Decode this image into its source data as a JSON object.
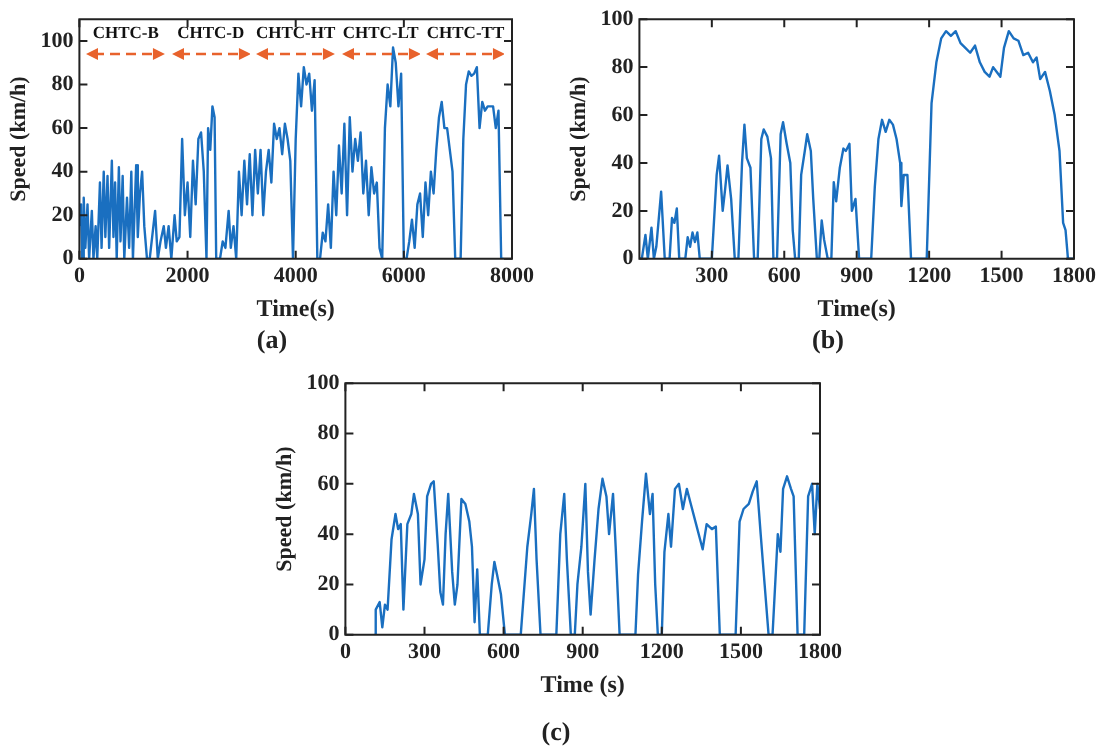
{
  "chart_data": [
    {
      "type": "line",
      "xlabel": "Time(s)",
      "ylabel": "Speed (km/h)",
      "annotations": [
        "(a)",
        "CHTC-B",
        "CHTC-D",
        "CHTC-HT",
        "CHTC-LT",
        "CHTC-TT"
      ],
      "legend": false,
      "grid": false,
      "marker": "none",
      "line_style": "solid",
      "xlim": [
        0,
        8000
      ],
      "ylim": [
        0,
        110
      ],
      "xticks": [
        0,
        2000,
        4000,
        6000,
        8000
      ],
      "yticks": [
        0,
        20,
        40,
        60,
        80,
        100
      ],
      "x": [
        0,
        30,
        50,
        80,
        110,
        150,
        180,
        230,
        260,
        300,
        330,
        380,
        410,
        450,
        480,
        520,
        550,
        600,
        630,
        660,
        690,
        730,
        760,
        800,
        830,
        880,
        920,
        960,
        990,
        1050,
        1080,
        1120,
        1160,
        1200,
        1250,
        1300,
        1400,
        1450,
        1500,
        1560,
        1600,
        1650,
        1700,
        1760,
        1800,
        1850,
        1900,
        1950,
        2000,
        2050,
        2100,
        2150,
        2200,
        2250,
        2300,
        2350,
        2380,
        2420,
        2460,
        2500,
        2530,
        2600,
        2650,
        2700,
        2760,
        2800,
        2850,
        2900,
        2950,
        3000,
        3050,
        3100,
        3150,
        3200,
        3250,
        3300,
        3350,
        3400,
        3450,
        3500,
        3550,
        3600,
        3650,
        3700,
        3750,
        3800,
        3850,
        3900,
        3950,
        4000,
        4050,
        4100,
        4150,
        4200,
        4250,
        4300,
        4350,
        4400,
        4450,
        4500,
        4550,
        4600,
        4650,
        4700,
        4750,
        4800,
        4850,
        4900,
        4950,
        5000,
        5050,
        5100,
        5150,
        5200,
        5250,
        5300,
        5350,
        5400,
        5450,
        5500,
        5550,
        5600,
        5650,
        5700,
        5750,
        5800,
        5850,
        5900,
        5950,
        6000,
        6050,
        6100,
        6150,
        6200,
        6250,
        6300,
        6350,
        6400,
        6450,
        6500,
        6550,
        6600,
        6650,
        6700,
        6750,
        6800,
        6850,
        6900,
        6950,
        7050,
        7100,
        7150,
        7200,
        7250,
        7300,
        7350,
        7400,
        7450,
        7500,
        7550,
        7600,
        7650,
        7700,
        7750,
        7800,
        7850
      ],
      "series": [
        {
          "color": "#1a6fc0",
          "values": [
            15,
            25,
            0,
            28,
            5,
            25,
            0,
            22,
            0,
            15,
            0,
            35,
            5,
            40,
            10,
            38,
            5,
            45,
            10,
            35,
            0,
            42,
            8,
            38,
            0,
            28,
            5,
            40,
            0,
            43,
            10,
            30,
            40,
            15,
            0,
            0,
            22,
            0,
            8,
            15,
            5,
            15,
            0,
            20,
            8,
            10,
            55,
            20,
            35,
            10,
            45,
            25,
            55,
            58,
            40,
            0,
            60,
            50,
            70,
            65,
            0,
            0,
            8,
            5,
            22,
            5,
            15,
            0,
            40,
            20,
            45,
            25,
            48,
            20,
            50,
            30,
            50,
            20,
            40,
            50,
            35,
            62,
            55,
            60,
            48,
            62,
            55,
            45,
            0,
            55,
            85,
            70,
            88,
            80,
            85,
            68,
            82,
            0,
            0,
            12,
            8,
            25,
            5,
            40,
            20,
            52,
            30,
            62,
            20,
            65,
            40,
            55,
            45,
            58,
            30,
            45,
            20,
            42,
            30,
            35,
            5,
            0,
            60,
            80,
            70,
            97,
            90,
            70,
            85,
            0,
            0,
            8,
            18,
            5,
            25,
            30,
            10,
            35,
            20,
            40,
            30,
            50,
            65,
            72,
            60,
            60,
            50,
            40,
            0,
            0,
            55,
            80,
            86,
            84,
            85,
            88,
            60,
            72,
            68,
            70,
            70,
            70,
            60,
            68,
            0,
            0
          ]
        }
      ]
    },
    {
      "type": "line",
      "xlabel": "Time(s)",
      "ylabel": "Speed (km/h)",
      "annotations": [
        "(b)"
      ],
      "legend": false,
      "grid": false,
      "marker": "none",
      "line_style": "solid",
      "xlim": [
        0,
        1800
      ],
      "ylim": [
        0,
        100
      ],
      "xticks": [
        300,
        600,
        900,
        1200,
        1500,
        1800
      ],
      "yticks": [
        0,
        20,
        40,
        60,
        80,
        100
      ],
      "x": [
        0,
        10,
        25,
        35,
        50,
        60,
        70,
        90,
        105,
        125,
        135,
        145,
        155,
        165,
        190,
        200,
        210,
        220,
        230,
        240,
        250,
        300,
        320,
        330,
        345,
        355,
        365,
        380,
        395,
        410,
        425,
        435,
        445,
        460,
        475,
        490,
        505,
        515,
        530,
        545,
        555,
        570,
        585,
        595,
        610,
        625,
        635,
        645,
        660,
        670,
        685,
        695,
        710,
        720,
        735,
        745,
        755,
        765,
        780,
        795,
        805,
        815,
        830,
        845,
        855,
        870,
        880,
        895,
        910,
        960,
        975,
        990,
        1005,
        1020,
        1035,
        1050,
        1065,
        1080,
        1085,
        1095,
        1110,
        1125,
        1190,
        1210,
        1230,
        1250,
        1270,
        1290,
        1310,
        1330,
        1350,
        1370,
        1390,
        1410,
        1430,
        1450,
        1465,
        1480,
        1495,
        1510,
        1530,
        1550,
        1570,
        1590,
        1610,
        1630,
        1645,
        1660,
        1680,
        1700,
        1720,
        1740,
        1755,
        1765,
        1775,
        1800
      ],
      "series": [
        {
          "color": "#1a6fc0",
          "values": [
            0,
            0,
            10,
            0,
            13,
            0,
            5,
            28,
            0,
            0,
            17,
            15,
            21,
            0,
            0,
            9,
            5,
            11,
            7,
            11,
            0,
            0,
            35,
            43,
            20,
            29,
            39,
            25,
            0,
            0,
            40,
            56,
            42,
            38,
            0,
            0,
            50,
            54,
            51,
            42,
            0,
            0,
            52,
            57,
            48,
            40,
            12,
            0,
            0,
            35,
            45,
            52,
            45,
            25,
            0,
            0,
            16,
            8,
            0,
            0,
            32,
            24,
            38,
            46,
            45,
            48,
            20,
            25,
            0,
            0,
            30,
            50,
            58,
            53,
            58,
            56,
            50,
            40,
            22,
            35,
            35,
            0,
            0,
            65,
            82,
            92,
            95,
            93,
            95,
            90,
            88,
            86,
            89,
            82,
            78,
            76,
            80,
            78,
            76,
            88,
            95,
            92,
            91,
            85,
            86,
            82,
            84,
            75,
            78,
            70,
            60,
            45,
            15,
            12,
            0,
            0
          ]
        }
      ]
    },
    {
      "type": "line",
      "xlabel": "Time (s)",
      "ylabel": "Speed (km/h)",
      "annotations": [
        "(c)"
      ],
      "legend": false,
      "grid": false,
      "marker": "none",
      "line_style": "solid",
      "xlim": [
        0,
        1800
      ],
      "ylim": [
        0,
        100
      ],
      "xticks": [
        0,
        300,
        600,
        900,
        1200,
        1500,
        1800
      ],
      "yticks": [
        0,
        20,
        40,
        60,
        80,
        100
      ],
      "x": [
        110,
        115,
        130,
        140,
        150,
        160,
        175,
        190,
        200,
        210,
        220,
        235,
        250,
        260,
        275,
        285,
        300,
        310,
        325,
        335,
        350,
        360,
        370,
        380,
        390,
        405,
        415,
        425,
        440,
        455,
        470,
        480,
        490,
        500,
        510,
        540,
        555,
        565,
        575,
        590,
        605,
        665,
        690,
        705,
        715,
        725,
        740,
        800,
        815,
        830,
        840,
        855,
        870,
        880,
        895,
        910,
        920,
        930,
        945,
        960,
        975,
        990,
        1000,
        1015,
        1025,
        1040,
        1100,
        1110,
        1125,
        1140,
        1155,
        1165,
        1175,
        1185,
        1200,
        1210,
        1225,
        1235,
        1250,
        1265,
        1280,
        1295,
        1310,
        1330,
        1345,
        1355,
        1370,
        1390,
        1405,
        1420,
        1480,
        1495,
        1510,
        1530,
        1545,
        1560,
        1575,
        1590,
        1605,
        1620,
        1640,
        1650,
        1660,
        1675,
        1690,
        1700,
        1715,
        1740,
        1755,
        1770,
        1780,
        1790,
        1800
      ],
      "series": [
        {
          "color": "#1a6fc0",
          "values": [
            0,
            10,
            13,
            3,
            12,
            10,
            38,
            48,
            42,
            44,
            10,
            44,
            48,
            56,
            48,
            20,
            30,
            55,
            60,
            61,
            36,
            17,
            12,
            40,
            56,
            25,
            12,
            20,
            54,
            52,
            45,
            35,
            5,
            26,
            0,
            0,
            20,
            29,
            24,
            16,
            0,
            0,
            35,
            48,
            58,
            30,
            0,
            0,
            40,
            56,
            30,
            0,
            0,
            20,
            35,
            60,
            25,
            8,
            30,
            50,
            62,
            55,
            40,
            56,
            35,
            0,
            0,
            24,
            45,
            64,
            48,
            56,
            20,
            0,
            0,
            33,
            48,
            35,
            58,
            60,
            50,
            58,
            52,
            44,
            38,
            34,
            44,
            42,
            43,
            0,
            0,
            45,
            50,
            52,
            57,
            61,
            40,
            20,
            0,
            0,
            40,
            33,
            58,
            63,
            58,
            55,
            0,
            0,
            55,
            60,
            40,
            60,
            50
          ]
        }
      ]
    }
  ]
}
